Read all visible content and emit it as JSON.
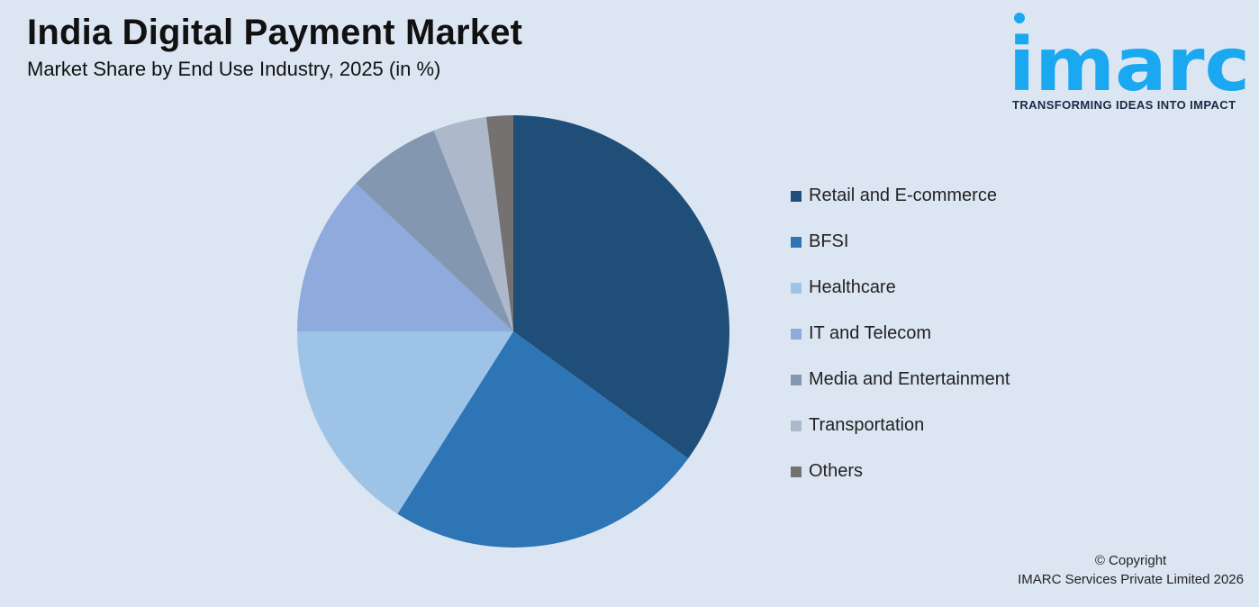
{
  "header": {
    "title": "India Digital Payment Market",
    "subtitle": "Market Share by End Use Industry, 2025 (in %)"
  },
  "logo": {
    "wordmark": "imarc",
    "tagline": "TRANSFORMING IDEAS INTO IMPACT",
    "color": "#1aa8f0"
  },
  "chart_data": {
    "type": "pie",
    "title": "India Digital Payment Market",
    "subtitle": "Market Share by End Use Industry, 2025 (in %)",
    "legend_position": "right",
    "slices": [
      {
        "label": "Retail and E-commerce",
        "value": 35,
        "color": "#1f4e79"
      },
      {
        "label": "BFSI",
        "value": 24,
        "color": "#2e75b6"
      },
      {
        "label": "Healthcare",
        "value": 16,
        "color": "#9dc3e6"
      },
      {
        "label": "IT and Telecom",
        "value": 12,
        "color": "#8faadc"
      },
      {
        "label": "Media and Entertainment",
        "value": 7,
        "color": "#8497b0"
      },
      {
        "label": "Transportation",
        "value": 4,
        "color": "#adb9ca"
      },
      {
        "label": "Others",
        "value": 2,
        "color": "#767171"
      }
    ]
  },
  "footer": {
    "copyright_line1": "© Copyright",
    "copyright_line2": "IMARC Services Private Limited 2026"
  }
}
